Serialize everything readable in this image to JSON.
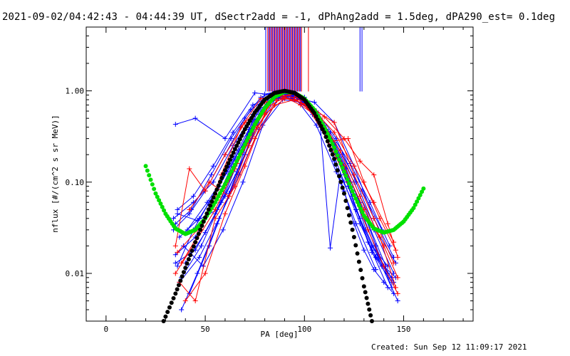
{
  "chart_data": {
    "type": "line",
    "title": "2021-09-02/04:42:43 - 04:44:39 UT, dSectr2add = -1, dPhAng2add = 1.5deg, dPA290_est=  0.1deg",
    "xlabel": "PA [deg]",
    "ylabel": "nflux [#/(cm^2 s sr MeV)]",
    "x_axis": {
      "range": [
        -10,
        185
      ],
      "ticks": [
        0,
        50,
        100,
        150
      ],
      "tick_labels": [
        "0",
        "50",
        "100",
        "150"
      ]
    },
    "y_axis": {
      "scale": "log",
      "range": [
        0.003,
        5.0
      ],
      "ticks": [
        0.01,
        0.1,
        1.0
      ],
      "tick_labels": [
        "0.01",
        "0.10",
        "1.00"
      ]
    },
    "grid": false,
    "reference_lines": {
      "red_x": [
        81.5,
        82.5,
        83.5,
        84.5,
        85.5,
        86.5,
        87.5,
        88.5,
        89.5,
        90.5,
        91.5,
        92.5,
        93.5,
        94.5,
        95.5,
        96.5,
        97.5,
        98.5,
        102.0
      ],
      "blue_x": [
        80.5,
        82.0,
        83.0,
        84.0,
        85.0,
        86.0,
        87.0,
        88.0,
        89.0,
        90.0,
        91.0,
        92.0,
        93.0,
        94.0,
        95.0,
        96.0,
        97.0,
        98.0,
        128.0,
        129.0
      ],
      "red_color": "#ff0000",
      "blue_color": "#0000ff"
    },
    "series": [
      {
        "color": "#00e000",
        "style": "dots",
        "x": [
          20,
          25,
          30,
          35,
          40,
          45,
          50,
          55,
          60,
          65,
          70,
          75,
          80,
          85,
          90,
          95,
          100,
          105,
          110,
          115,
          120,
          125,
          130,
          135,
          140,
          145,
          150,
          155,
          160
        ],
        "y": [
          0.15,
          0.075,
          0.045,
          0.031,
          0.027,
          0.03,
          0.04,
          0.06,
          0.095,
          0.155,
          0.26,
          0.43,
          0.65,
          0.86,
          0.98,
          0.95,
          0.82,
          0.62,
          0.4,
          0.24,
          0.13,
          0.072,
          0.043,
          0.031,
          0.028,
          0.03,
          0.037,
          0.052,
          0.085
        ]
      },
      {
        "color": "#000000",
        "style": "dots",
        "x": [
          29,
          35,
          40,
          45,
          50,
          55,
          60,
          65,
          70,
          75,
          80,
          85,
          90,
          95,
          100,
          105,
          110,
          115,
          120,
          125,
          130,
          134
        ],
        "y": [
          0.003,
          0.006,
          0.0115,
          0.022,
          0.041,
          0.075,
          0.135,
          0.23,
          0.38,
          0.58,
          0.8,
          0.95,
          1.0,
          0.95,
          0.8,
          0.57,
          0.35,
          0.18,
          0.075,
          0.025,
          0.0072,
          0.003
        ]
      },
      {
        "color": "#0000ff",
        "style": "line+",
        "x": [
          35,
          45,
          55,
          65,
          75,
          80,
          85,
          90,
          95,
          100,
          105,
          110,
          115,
          120,
          125,
          130,
          135,
          140,
          145
        ],
        "y": [
          0.013,
          0.018,
          0.045,
          0.15,
          0.55,
          0.92,
          0.97,
          0.96,
          0.9,
          0.8,
          0.6,
          0.35,
          0.17,
          0.08,
          0.035,
          0.018,
          0.011,
          0.008,
          0.006
        ]
      },
      {
        "color": "#0000ff",
        "style": "line+",
        "x": [
          34,
          42,
          50,
          60,
          70,
          78,
          85,
          92,
          98,
          104,
          110,
          116,
          122,
          128,
          134,
          140,
          146
        ],
        "y": [
          0.03,
          0.045,
          0.08,
          0.2,
          0.5,
          0.85,
          0.98,
          0.93,
          0.85,
          0.6,
          0.38,
          0.2,
          0.09,
          0.04,
          0.02,
          0.012,
          0.009
        ]
      },
      {
        "color": "#0000ff",
        "style": "line+",
        "x": [
          36,
          44,
          52,
          62,
          72,
          80,
          88,
          96,
          104,
          112,
          120,
          128,
          136,
          144
        ],
        "y": [
          0.012,
          0.03,
          0.06,
          0.15,
          0.38,
          0.8,
          0.92,
          0.88,
          0.55,
          0.28,
          0.1,
          0.035,
          0.015,
          0.009
        ]
      },
      {
        "color": "#0000ff",
        "style": "line+",
        "x": [
          35,
          45,
          60,
          75,
          85,
          95,
          105,
          115,
          125,
          135,
          145
        ],
        "y": [
          0.43,
          0.5,
          0.3,
          0.95,
          0.9,
          0.85,
          0.75,
          0.45,
          0.15,
          0.04,
          0.015
        ]
      },
      {
        "color": "#0000ff",
        "style": "line+",
        "x": [
          38,
          48,
          58,
          68,
          78,
          86,
          94,
          102,
          110,
          118,
          126,
          134,
          142
        ],
        "y": [
          0.009,
          0.02,
          0.06,
          0.2,
          0.6,
          0.93,
          0.9,
          0.7,
          0.42,
          0.17,
          0.05,
          0.018,
          0.01
        ]
      },
      {
        "color": "#0000ff",
        "style": "line+",
        "x": [
          37,
          47,
          57,
          67,
          77,
          83,
          91,
          99,
          107,
          115,
          123,
          131,
          139,
          147
        ],
        "y": [
          0.025,
          0.04,
          0.09,
          0.22,
          0.55,
          0.88,
          0.95,
          0.82,
          0.55,
          0.26,
          0.1,
          0.03,
          0.012,
          0.005
        ]
      },
      {
        "color": "#0000ff",
        "style": "line+",
        "x": [
          34,
          44,
          54,
          64,
          74,
          84,
          94,
          100,
          108,
          113,
          118,
          126,
          134,
          142
        ],
        "y": [
          0.04,
          0.06,
          0.1,
          0.25,
          0.55,
          0.8,
          0.88,
          0.85,
          0.4,
          0.019,
          0.12,
          0.05,
          0.02,
          0.012
        ]
      },
      {
        "color": "#0000ff",
        "style": "line+",
        "x": [
          40,
          50,
          60,
          70,
          80,
          90,
          100,
          110,
          120,
          128,
          136,
          144
        ],
        "y": [
          0.013,
          0.028,
          0.07,
          0.2,
          0.65,
          0.98,
          0.8,
          0.4,
          0.15,
          0.06,
          0.02,
          0.007
        ]
      },
      {
        "color": "#0000ff",
        "style": "line+",
        "x": [
          36,
          46,
          56,
          66,
          76,
          86,
          96,
          106,
          116,
          126,
          136,
          146
        ],
        "y": [
          0.045,
          0.038,
          0.05,
          0.13,
          0.4,
          0.85,
          0.9,
          0.6,
          0.3,
          0.1,
          0.03,
          0.013
        ]
      },
      {
        "color": "#0000ff",
        "style": "line+",
        "x": [
          42,
          52,
          62,
          72,
          82,
          92,
          102,
          112,
          122,
          132,
          142
        ],
        "y": [
          0.006,
          0.02,
          0.075,
          0.3,
          0.75,
          0.92,
          0.7,
          0.32,
          0.09,
          0.022,
          0.007
        ]
      },
      {
        "color": "#0000ff",
        "style": "line+",
        "x": [
          35,
          43,
          53,
          63,
          73,
          83,
          93,
          103,
          113,
          123,
          133,
          143
        ],
        "y": [
          0.035,
          0.05,
          0.12,
          0.3,
          0.62,
          0.9,
          0.86,
          0.62,
          0.35,
          0.16,
          0.06,
          0.02
        ]
      },
      {
        "color": "#0000ff",
        "style": "line+",
        "x": [
          39,
          49,
          59,
          69,
          79,
          89,
          99,
          109,
          119,
          129,
          139
        ],
        "y": [
          0.02,
          0.012,
          0.03,
          0.1,
          0.42,
          0.8,
          0.75,
          0.45,
          0.2,
          0.08,
          0.03
        ]
      },
      {
        "color": "#0000ff",
        "style": "line+",
        "x": [
          35,
          45,
          55,
          65,
          75,
          85,
          95,
          105,
          115,
          125,
          135,
          145
        ],
        "y": [
          0.016,
          0.025,
          0.06,
          0.18,
          0.48,
          0.85,
          0.88,
          0.58,
          0.27,
          0.1,
          0.03,
          0.01
        ]
      },
      {
        "color": "#0000ff",
        "style": "line+",
        "x": [
          37,
          47,
          57,
          67,
          77,
          87,
          97,
          107,
          117,
          127,
          137,
          145
        ],
        "y": [
          0.008,
          0.015,
          0.04,
          0.12,
          0.38,
          0.82,
          0.84,
          0.52,
          0.2,
          0.06,
          0.016,
          0.008
        ]
      },
      {
        "color": "#0000ff",
        "style": "line+",
        "x": [
          41,
          51,
          61,
          71,
          81,
          91,
          101,
          111,
          121,
          131,
          141
        ],
        "y": [
          0.03,
          0.06,
          0.13,
          0.32,
          0.7,
          0.95,
          0.72,
          0.38,
          0.14,
          0.04,
          0.012
        ]
      },
      {
        "color": "#0000ff",
        "style": "line+",
        "x": [
          36,
          44,
          54,
          64,
          74,
          84,
          94,
          104,
          114,
          124,
          134,
          144
        ],
        "y": [
          0.05,
          0.07,
          0.15,
          0.35,
          0.7,
          0.9,
          0.82,
          0.6,
          0.28,
          0.07,
          0.017,
          0.008
        ]
      },
      {
        "color": "#0000ff",
        "style": "line+",
        "x": [
          38,
          46,
          56,
          66,
          76,
          86,
          96,
          106,
          116,
          126,
          136
        ],
        "y": [
          0.004,
          0.01,
          0.035,
          0.12,
          0.45,
          0.88,
          0.8,
          0.42,
          0.13,
          0.035,
          0.011
        ]
      },
      {
        "color": "#ff0000",
        "style": "line+",
        "x": [
          35,
          42,
          50,
          60,
          70,
          80,
          90,
          100,
          110,
          120,
          130,
          140,
          147
        ],
        "y": [
          0.02,
          0.14,
          0.08,
          0.2,
          0.45,
          0.75,
          0.85,
          0.72,
          0.4,
          0.15,
          0.05,
          0.02,
          0.009
        ]
      },
      {
        "color": "#ff0000",
        "style": "line+",
        "x": [
          37,
          45,
          55,
          65,
          75,
          85,
          95,
          105,
          115,
          125,
          135,
          145
        ],
        "y": [
          0.008,
          0.005,
          0.04,
          0.09,
          0.3,
          0.7,
          0.8,
          0.6,
          0.35,
          0.15,
          0.06,
          0.022
        ]
      },
      {
        "color": "#ff0000",
        "style": "line+",
        "x": [
          40,
          50,
          60,
          70,
          80,
          90,
          100,
          110,
          120,
          128,
          135,
          142,
          147
        ],
        "y": [
          0.005,
          0.01,
          0.045,
          0.15,
          0.55,
          0.82,
          0.78,
          0.52,
          0.3,
          0.17,
          0.12,
          0.035,
          0.015
        ]
      },
      {
        "color": "#ff0000",
        "style": "line+",
        "x": [
          36,
          46,
          56,
          66,
          76,
          86,
          96,
          106,
          114,
          122,
          130,
          138,
          146
        ],
        "y": [
          0.017,
          0.03,
          0.07,
          0.16,
          0.4,
          0.78,
          0.86,
          0.5,
          0.28,
          0.3,
          0.1,
          0.04,
          0.018
        ]
      },
      {
        "color": "#ff0000",
        "style": "line+",
        "x": [
          42,
          52,
          62,
          72,
          82,
          92,
          102,
          112,
          122,
          132,
          140,
          147
        ],
        "y": [
          0.05,
          0.1,
          0.07,
          0.25,
          0.68,
          0.9,
          0.65,
          0.28,
          0.1,
          0.03,
          0.012,
          0.006
        ]
      },
      {
        "color": "#ff0000",
        "style": "line+",
        "x": [
          38,
          48,
          58,
          68,
          78,
          88,
          98,
          108,
          118,
          128,
          138,
          146
        ],
        "y": [
          0.013,
          0.03,
          0.12,
          0.4,
          0.82,
          0.9,
          0.7,
          0.5,
          0.22,
          0.07,
          0.025,
          0.007
        ]
      },
      {
        "color": "#ff0000",
        "style": "line+",
        "x": [
          35,
          45,
          55,
          65,
          75,
          85,
          95,
          105,
          115,
          125,
          135,
          145
        ],
        "y": [
          0.01,
          0.022,
          0.05,
          0.14,
          0.4,
          0.85,
          0.92,
          0.62,
          0.45,
          0.12,
          0.04,
          0.013
        ]
      }
    ]
  },
  "footer": {
    "created": "Created: Sun Sep 12 11:09:17 2021"
  }
}
